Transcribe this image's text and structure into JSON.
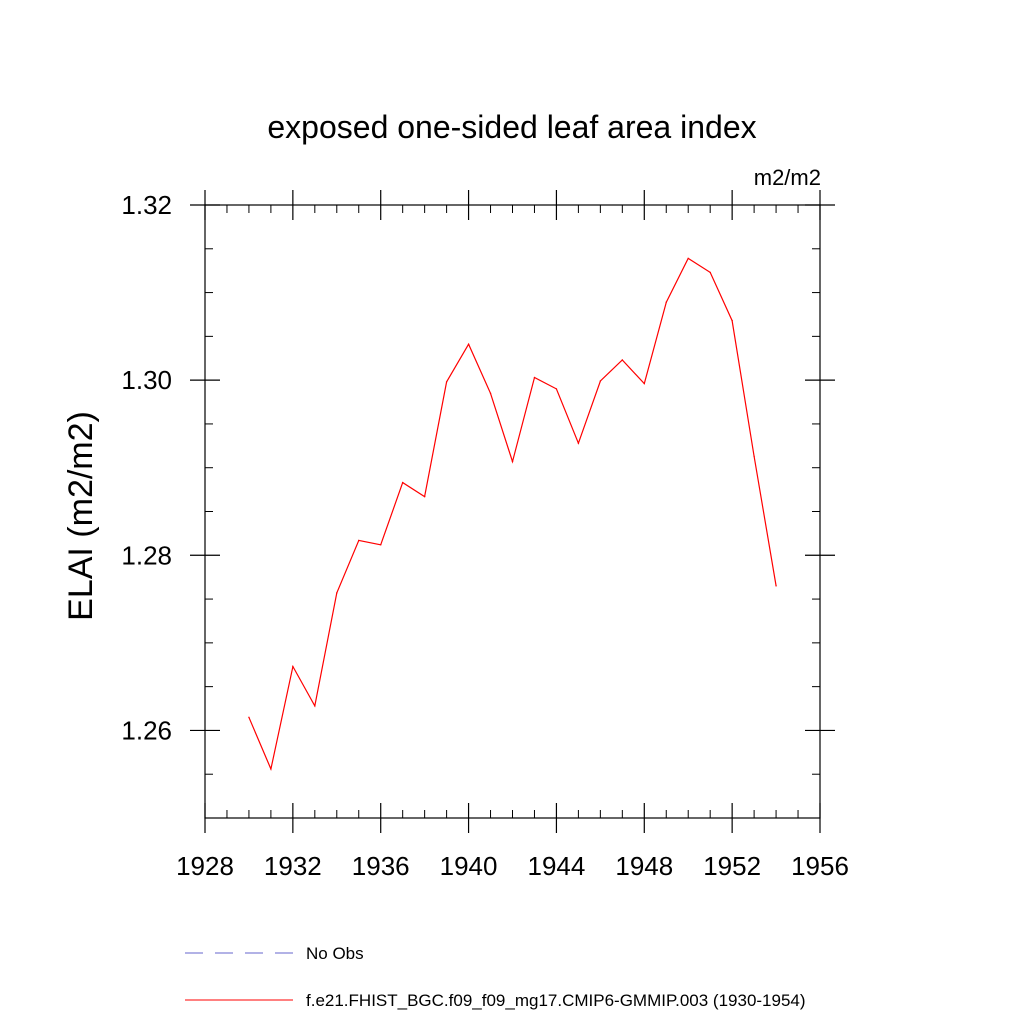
{
  "chart_data": {
    "type": "line",
    "title": "exposed one-sided leaf area index",
    "units_label": "m2/m2",
    "ylabel": "ELAI  (m2/m2)",
    "xlabel": "",
    "xlim": [
      1928,
      1956
    ],
    "ylim": [
      1.25,
      1.32
    ],
    "x_ticks": [
      1928,
      1932,
      1936,
      1940,
      1944,
      1948,
      1952,
      1956
    ],
    "x_tick_labels": [
      "1928",
      "1932",
      "1936",
      "1940",
      "1944",
      "1948",
      "1952",
      "1956"
    ],
    "x_minor_step": 1,
    "y_ticks": [
      1.26,
      1.28,
      1.3,
      1.32
    ],
    "y_tick_labels": [
      "1.26",
      "1.28",
      "1.30",
      "1.32"
    ],
    "y_minor_step": 0.005,
    "grid": false,
    "legend_position": "bottom",
    "legend": [
      {
        "label": "No Obs",
        "color": "#6666cc",
        "dash": "dashed"
      },
      {
        "label": "f.e21.FHIST_BGC.f09_f09_mg17.CMIP6-GMMIP.003 (1930-1954)",
        "color": "#ff0000",
        "dash": "solid"
      }
    ],
    "series": [
      {
        "name": "f.e21.FHIST_BGC.f09_f09_mg17.CMIP6-GMMIP.003 (1930-1954)",
        "color": "#ff0000",
        "x": [
          1930,
          1931,
          1932,
          1933,
          1934,
          1935,
          1936,
          1937,
          1938,
          1939,
          1940,
          1941,
          1942,
          1943,
          1944,
          1945,
          1946,
          1947,
          1948,
          1949,
          1950,
          1951,
          1952,
          1953,
          1954
        ],
        "values": [
          1.2615,
          1.2556,
          1.2673,
          1.2628,
          1.2757,
          1.2817,
          1.2812,
          1.2883,
          1.2867,
          1.2998,
          1.3041,
          1.2985,
          1.2907,
          1.3003,
          1.299,
          1.2928,
          1.2999,
          1.3023,
          1.2996,
          1.3089,
          1.3139,
          1.3123,
          1.3068,
          1.2913,
          1.2765
        ]
      }
    ]
  }
}
